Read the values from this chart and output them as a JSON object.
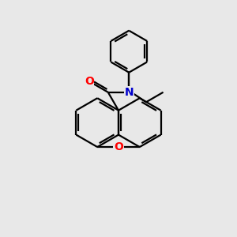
{
  "bg_color": "#e8e8e8",
  "bond_color": "#000000",
  "oxygen_color": "#ff0000",
  "nitrogen_color": "#0000cd",
  "line_width": 1.6,
  "figsize": [
    3.0,
    3.0
  ],
  "dpi": 100,
  "xlim": [
    0,
    10
  ],
  "ylim": [
    0,
    10
  ]
}
